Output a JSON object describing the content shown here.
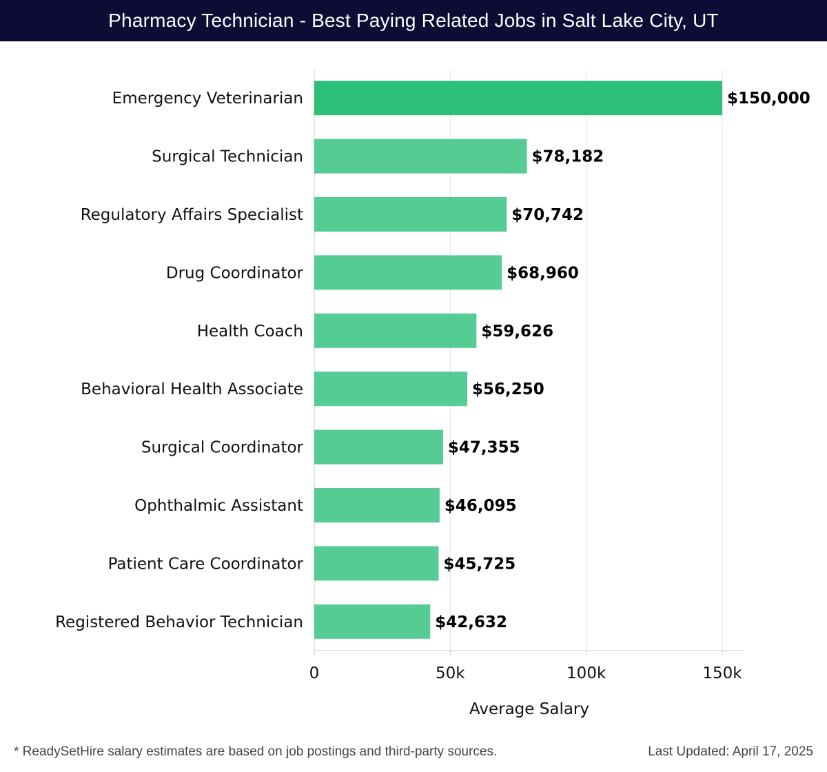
{
  "header": {
    "title": "Pharmacy Technician - Best Paying Related Jobs in Salt Lake City, UT"
  },
  "chart_data": {
    "type": "bar",
    "orientation": "horizontal",
    "title": "Pharmacy Technician - Best Paying Related Jobs in Salt Lake City, UT",
    "categories": [
      "Emergency Veterinarian",
      "Surgical Technician",
      "Regulatory Affairs Specialist",
      "Drug Coordinator",
      "Health Coach",
      "Behavioral Health Associate",
      "Surgical Coordinator",
      "Ophthalmic Assistant",
      "Patient Care Coordinator",
      "Registered Behavior Technician"
    ],
    "values": [
      150000,
      78182,
      70742,
      68960,
      59626,
      56250,
      47355,
      46095,
      45725,
      42632
    ],
    "value_labels": [
      "$150,000",
      "$78,182",
      "$70,742",
      "$68,960",
      "$59,626",
      "$56,250",
      "$47,355",
      "$46,095",
      "$45,725",
      "$42,632"
    ],
    "xlabel": "Average Salary",
    "ylabel": "",
    "xlim": [
      0,
      158000
    ],
    "x_ticks": [
      0,
      50000,
      100000,
      150000
    ],
    "x_tick_labels": [
      "0",
      "50k",
      "100k",
      "150k"
    ],
    "grid": true,
    "colors": {
      "highlight": "#2dbe78",
      "bar": "#55cc93",
      "grid": "#e3e3e3",
      "axis": "#cccccc"
    }
  },
  "footer": {
    "note": "* ReadySetHire salary estimates are based on job postings and third-party sources.",
    "updated": "Last Updated: April 17, 2025"
  }
}
